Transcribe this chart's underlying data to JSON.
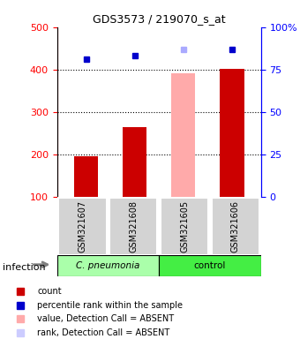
{
  "title": "GDS3573 / 219070_s_at",
  "samples": [
    "GSM321607",
    "GSM321608",
    "GSM321605",
    "GSM321606"
  ],
  "bar_values": [
    196,
    264,
    392,
    402
  ],
  "bar_colors": [
    "#cc0000",
    "#cc0000",
    "#ffaaaa",
    "#cc0000"
  ],
  "dot_values": [
    424,
    432,
    448,
    448
  ],
  "dot_colors": [
    "#0000cc",
    "#0000cc",
    "#aaaaff",
    "#0000cc"
  ],
  "ylim_left": [
    100,
    500
  ],
  "ylim_right": [
    0,
    100
  ],
  "yticks_left": [
    100,
    200,
    300,
    400,
    500
  ],
  "yticks_right": [
    0,
    25,
    50,
    75,
    100
  ],
  "ytick_labels_right": [
    "0",
    "25",
    "50",
    "75",
    "100%"
  ],
  "dotted_lines": [
    200,
    300,
    400
  ],
  "legend_items": [
    {
      "color": "#cc0000",
      "label": "count"
    },
    {
      "color": "#0000cc",
      "label": "percentile rank within the sample"
    },
    {
      "color": "#ffaaaa",
      "label": "value, Detection Call = ABSENT"
    },
    {
      "color": "#ccccff",
      "label": "rank, Detection Call = ABSENT"
    }
  ],
  "group_label": "infection",
  "sample_bg": "#d3d3d3",
  "group1_color": "#aaffaa",
  "group2_color": "#44ee44",
  "group1_label": "C. pneumonia",
  "group2_label": "control"
}
